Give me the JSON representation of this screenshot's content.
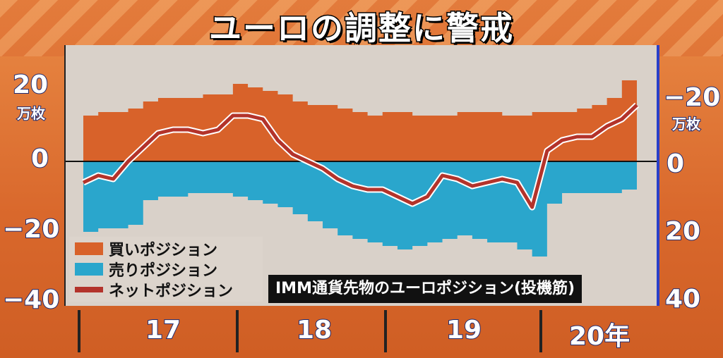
{
  "title": "ユーロの調整に警戒",
  "legend": {
    "buy": "買いポジション",
    "sell": "売りポジション",
    "net": "ネットポジション"
  },
  "source_label": "IMM通貨先物のユーロポジション(投機筋)",
  "axis_left": {
    "ticks": [
      "20",
      "0",
      "−20",
      "−40"
    ],
    "unit": "万枚"
  },
  "axis_right": {
    "ticks": [
      "−20",
      "0",
      "20",
      "40"
    ],
    "unit": "万枚"
  },
  "x_ticks": [
    "17",
    "18",
    "19",
    "20年"
  ],
  "colors": {
    "buy": "#d8622a",
    "sell": "#2aa6cc",
    "net": "#b3332b",
    "right_axis": "#2a3fc8"
  },
  "chart_data": {
    "type": "area",
    "title": "ユーロの調整に警戒",
    "x": [
      2017.0,
      2017.1,
      2017.2,
      2017.3,
      2017.4,
      2017.5,
      2017.6,
      2017.7,
      2017.8,
      2017.9,
      2018.0,
      2018.1,
      2018.2,
      2018.3,
      2018.4,
      2018.5,
      2018.6,
      2018.7,
      2018.8,
      2018.9,
      2019.0,
      2019.1,
      2019.2,
      2019.3,
      2019.4,
      2019.5,
      2019.6,
      2019.7,
      2019.8,
      2019.9,
      2020.0,
      2020.1,
      2020.2,
      2020.3,
      2020.4,
      2020.5,
      2020.6,
      2020.7
    ],
    "ylim": [
      -45,
      27
    ],
    "series": [
      {
        "name": "買いポジション",
        "values": [
          13,
          14,
          14,
          15,
          17,
          18,
          18,
          18,
          19,
          19,
          22,
          21,
          20,
          19,
          17,
          16,
          16,
          15,
          14,
          13,
          14,
          14,
          13,
          13,
          13,
          14,
          14,
          14,
          13,
          13,
          14,
          14,
          14,
          15,
          16,
          18,
          23,
          23
        ]
      },
      {
        "name": "売りポジション",
        "values": [
          -20,
          -19,
          -19,
          -18,
          -11,
          -10,
          -10,
          -9,
          -9,
          -9,
          -10,
          -11,
          -12,
          -13,
          -15,
          -17,
          -19,
          -21,
          -22,
          -23,
          -24,
          -25,
          -24,
          -23,
          -22,
          -21,
          -22,
          -23,
          -23,
          -25,
          -27,
          -12,
          -9,
          -9,
          -9,
          -9,
          -8,
          -8
        ]
      },
      {
        "name": "ネットポジション",
        "values": [
          -6,
          -4,
          -5,
          0,
          4,
          8,
          9,
          9,
          8,
          9,
          13,
          13,
          12,
          6,
          2,
          0,
          -2,
          -5,
          -7,
          -8,
          -8,
          -10,
          -12,
          -10,
          -4,
          -5,
          -7,
          -6,
          -5,
          -6,
          -13,
          3,
          6,
          7,
          7,
          10,
          12,
          16
        ]
      }
    ]
  }
}
